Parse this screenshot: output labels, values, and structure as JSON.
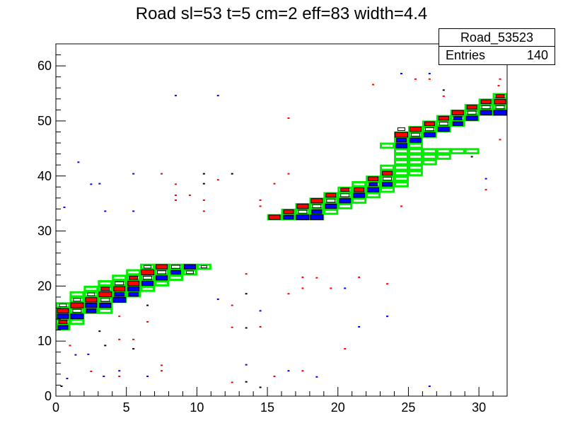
{
  "chart_data": {
    "type": "heatmap",
    "title": "Road sl=53 t=5 cm=2 eff=83 width=4.4",
    "xlabel": "",
    "ylabel": "",
    "xlim": [
      0,
      32
    ],
    "ylim": [
      0,
      64
    ],
    "x_ticks": [
      0,
      5,
      10,
      15,
      20,
      25,
      30
    ],
    "y_ticks": [
      0,
      10,
      20,
      30,
      40,
      50,
      60
    ],
    "grid": false,
    "stats_box": {
      "name": "Road_53523",
      "entries_label": "Entries",
      "entries_value": "140"
    },
    "colors": {
      "hit_a": "#ff0000",
      "hit_b": "#0000ff",
      "hit_c": "#000000",
      "road": "#00ee00",
      "axis": "#000000"
    },
    "road_cells": [
      [
        0,
        12
      ],
      [
        0,
        13
      ],
      [
        0,
        14
      ],
      [
        0,
        15
      ],
      [
        0,
        16
      ],
      [
        1,
        13
      ],
      [
        1,
        14
      ],
      [
        1,
        15
      ],
      [
        1,
        16
      ],
      [
        1,
        17
      ],
      [
        1,
        18
      ],
      [
        2,
        15
      ],
      [
        2,
        16
      ],
      [
        2,
        17
      ],
      [
        2,
        18
      ],
      [
        2,
        19
      ],
      [
        3,
        15
      ],
      [
        3,
        16
      ],
      [
        3,
        17
      ],
      [
        3,
        18
      ],
      [
        3,
        19
      ],
      [
        3,
        20
      ],
      [
        4,
        17
      ],
      [
        4,
        18
      ],
      [
        4,
        19
      ],
      [
        4,
        20
      ],
      [
        4,
        21
      ],
      [
        5,
        18
      ],
      [
        5,
        19
      ],
      [
        5,
        20
      ],
      [
        5,
        21
      ],
      [
        5,
        22
      ],
      [
        6,
        19
      ],
      [
        6,
        20
      ],
      [
        6,
        21
      ],
      [
        6,
        22
      ],
      [
        6,
        23
      ],
      [
        7,
        20
      ],
      [
        7,
        21
      ],
      [
        7,
        22
      ],
      [
        7,
        23
      ],
      [
        8,
        21
      ],
      [
        8,
        22
      ],
      [
        8,
        23
      ],
      [
        9,
        22
      ],
      [
        9,
        23
      ],
      [
        10,
        23
      ],
      [
        15,
        32
      ],
      [
        16,
        32
      ],
      [
        16,
        33
      ],
      [
        17,
        32
      ],
      [
        17,
        33
      ],
      [
        17,
        34
      ],
      [
        18,
        32
      ],
      [
        18,
        33
      ],
      [
        18,
        34
      ],
      [
        18,
        35
      ],
      [
        19,
        33
      ],
      [
        19,
        34
      ],
      [
        19,
        35
      ],
      [
        19,
        36
      ],
      [
        20,
        34
      ],
      [
        20,
        35
      ],
      [
        20,
        36
      ],
      [
        20,
        37
      ],
      [
        21,
        35
      ],
      [
        21,
        36
      ],
      [
        21,
        37
      ],
      [
        21,
        38
      ],
      [
        22,
        36
      ],
      [
        22,
        37
      ],
      [
        22,
        38
      ],
      [
        22,
        39
      ],
      [
        23,
        37
      ],
      [
        23,
        38
      ],
      [
        23,
        39
      ],
      [
        23,
        40
      ],
      [
        23,
        41
      ],
      [
        23,
        45
      ],
      [
        24,
        38
      ],
      [
        24,
        39
      ],
      [
        24,
        40
      ],
      [
        24,
        41
      ],
      [
        24,
        42
      ],
      [
        24,
        43
      ],
      [
        24,
        44
      ],
      [
        24,
        45
      ],
      [
        24,
        46
      ],
      [
        24,
        47
      ],
      [
        25,
        40
      ],
      [
        25,
        41
      ],
      [
        25,
        42
      ],
      [
        25,
        43
      ],
      [
        25,
        44
      ],
      [
        25,
        45
      ],
      [
        25,
        46
      ],
      [
        25,
        47
      ],
      [
        25,
        48
      ],
      [
        26,
        42
      ],
      [
        26,
        43
      ],
      [
        26,
        44
      ],
      [
        26,
        47
      ],
      [
        26,
        48
      ],
      [
        26,
        49
      ],
      [
        27,
        43
      ],
      [
        27,
        44
      ],
      [
        27,
        48
      ],
      [
        27,
        49
      ],
      [
        27,
        50
      ],
      [
        28,
        44
      ],
      [
        28,
        49
      ],
      [
        28,
        50
      ],
      [
        28,
        51
      ],
      [
        29,
        44
      ],
      [
        29,
        50
      ],
      [
        29,
        51
      ],
      [
        29,
        52
      ],
      [
        30,
        51
      ],
      [
        30,
        52
      ],
      [
        30,
        53
      ],
      [
        31,
        51
      ],
      [
        31,
        52
      ],
      [
        31,
        53
      ],
      [
        31,
        54
      ]
    ],
    "track_hits": [
      [
        0,
        12,
        "b",
        0.7
      ],
      [
        0,
        13,
        "r",
        0.6
      ],
      [
        0,
        14,
        "b",
        0.8
      ],
      [
        0,
        15,
        "r",
        0.8
      ],
      [
        0,
        16,
        "k",
        0.5
      ],
      [
        1,
        14,
        "b",
        0.9
      ],
      [
        1,
        15,
        "k",
        0.6
      ],
      [
        1,
        16,
        "r",
        0.9
      ],
      [
        1,
        17,
        "k",
        0.5
      ],
      [
        2,
        15,
        "b",
        0.7
      ],
      [
        2,
        16,
        "b",
        0.8
      ],
      [
        2,
        17,
        "r",
        0.8
      ],
      [
        2,
        18,
        "k",
        0.5
      ],
      [
        3,
        16,
        "b",
        0.8
      ],
      [
        3,
        17,
        "k",
        0.6
      ],
      [
        3,
        18,
        "r",
        0.9
      ],
      [
        3,
        19,
        "r",
        0.6
      ],
      [
        4,
        17,
        "b",
        0.9
      ],
      [
        4,
        18,
        "b",
        0.7
      ],
      [
        4,
        19,
        "r",
        0.8
      ],
      [
        4,
        20,
        "k",
        0.6
      ],
      [
        5,
        18,
        "b",
        0.7
      ],
      [
        5,
        19,
        "b",
        0.8
      ],
      [
        5,
        20,
        "r",
        0.8
      ],
      [
        5,
        21,
        "r",
        0.6
      ],
      [
        6,
        20,
        "b",
        0.8
      ],
      [
        6,
        21,
        "k",
        0.6
      ],
      [
        6,
        22,
        "r",
        0.9
      ],
      [
        6,
        23,
        "k",
        0.5
      ],
      [
        7,
        21,
        "b",
        0.8
      ],
      [
        7,
        22,
        "k",
        0.6
      ],
      [
        7,
        23,
        "r",
        0.8
      ],
      [
        8,
        22,
        "b",
        0.7
      ],
      [
        8,
        23,
        "k",
        0.6
      ],
      [
        9,
        22,
        "k",
        0.5
      ],
      [
        9,
        23,
        "b",
        0.8
      ],
      [
        10,
        23,
        "k",
        0.4
      ],
      [
        15,
        32,
        "r",
        0.8
      ],
      [
        16,
        32,
        "b",
        0.7
      ],
      [
        16,
        33,
        "r",
        0.7
      ],
      [
        17,
        32,
        "b",
        0.9
      ],
      [
        17,
        33,
        "k",
        0.6
      ],
      [
        17,
        34,
        "r",
        0.8
      ],
      [
        18,
        32,
        "b",
        0.9
      ],
      [
        18,
        33,
        "b",
        0.7
      ],
      [
        18,
        34,
        "k",
        0.6
      ],
      [
        18,
        35,
        "r",
        0.8
      ],
      [
        19,
        34,
        "b",
        0.8
      ],
      [
        19,
        35,
        "k",
        0.6
      ],
      [
        19,
        36,
        "r",
        0.7
      ],
      [
        20,
        35,
        "b",
        0.8
      ],
      [
        20,
        36,
        "k",
        0.6
      ],
      [
        20,
        37,
        "r",
        0.6
      ],
      [
        21,
        36,
        "b",
        0.8
      ],
      [
        21,
        37,
        "r",
        0.7
      ],
      [
        22,
        37,
        "b",
        0.8
      ],
      [
        22,
        38,
        "b",
        0.6
      ],
      [
        22,
        39,
        "r",
        0.7
      ],
      [
        23,
        38,
        "b",
        0.7
      ],
      [
        23,
        39,
        "k",
        0.6
      ],
      [
        23,
        40,
        "r",
        0.7
      ],
      [
        24,
        45,
        "b",
        0.8
      ],
      [
        24,
        46,
        "b",
        0.7
      ],
      [
        24,
        47,
        "r",
        0.9
      ],
      [
        24,
        48,
        "k",
        0.5
      ],
      [
        25,
        46,
        "b",
        0.8
      ],
      [
        25,
        47,
        "k",
        0.6
      ],
      [
        25,
        48,
        "r",
        0.8
      ],
      [
        26,
        47,
        "b",
        0.8
      ],
      [
        26,
        48,
        "k",
        0.6
      ],
      [
        26,
        49,
        "r",
        0.7
      ],
      [
        27,
        48,
        "b",
        0.8
      ],
      [
        27,
        49,
        "k",
        0.6
      ],
      [
        27,
        50,
        "r",
        0.7
      ],
      [
        28,
        49,
        "b",
        0.7
      ],
      [
        28,
        50,
        "b",
        0.6
      ],
      [
        28,
        51,
        "r",
        0.8
      ],
      [
        29,
        50,
        "b",
        0.8
      ],
      [
        29,
        51,
        "k",
        0.6
      ],
      [
        29,
        52,
        "r",
        0.7
      ],
      [
        30,
        51,
        "b",
        0.8
      ],
      [
        30,
        52,
        "k",
        0.6
      ],
      [
        30,
        53,
        "r",
        0.7
      ],
      [
        31,
        51,
        "b",
        0.9
      ],
      [
        31,
        52,
        "k",
        0.6
      ],
      [
        31,
        53,
        "r",
        0.8
      ],
      [
        31,
        54,
        "r",
        0.6
      ]
    ],
    "noise_hits": [
      [
        0.4,
        1.8,
        "k"
      ],
      [
        0.8,
        3.2,
        "b"
      ],
      [
        1.4,
        7.5,
        "b"
      ],
      [
        1.0,
        9.2,
        "r"
      ],
      [
        0.6,
        34.3,
        "b"
      ],
      [
        2.3,
        7.6,
        "b"
      ],
      [
        3.1,
        11.8,
        "k"
      ],
      [
        2.5,
        4.5,
        "r"
      ],
      [
        3.4,
        3.6,
        "b"
      ],
      [
        3.5,
        9.2,
        "k"
      ],
      [
        2.5,
        38.5,
        "b"
      ],
      [
        3.1,
        38.6,
        "b"
      ],
      [
        1.6,
        42.5,
        "b"
      ],
      [
        3.5,
        33.6,
        "b"
      ],
      [
        4.5,
        3.6,
        "r"
      ],
      [
        4.5,
        4.6,
        "b"
      ],
      [
        4.5,
        10.3,
        "r"
      ],
      [
        4.5,
        14.5,
        "r"
      ],
      [
        5.5,
        33.6,
        "b"
      ],
      [
        5.5,
        10.3,
        "r"
      ],
      [
        5.5,
        8.6,
        "k"
      ],
      [
        5.5,
        40.4,
        "b"
      ],
      [
        6.5,
        3.6,
        "b"
      ],
      [
        6.5,
        16.5,
        "k"
      ],
      [
        7.5,
        4.6,
        "r"
      ],
      [
        7.5,
        5.6,
        "r"
      ],
      [
        6.5,
        13.5,
        "r"
      ],
      [
        7.5,
        40.4,
        "r"
      ],
      [
        8.5,
        38.5,
        "r"
      ],
      [
        8.5,
        36.5,
        "r"
      ],
      [
        8.5,
        35.6,
        "r"
      ],
      [
        8.5,
        54.6,
        "b"
      ],
      [
        9.5,
        36.5,
        "r"
      ],
      [
        10.5,
        33.6,
        "r"
      ],
      [
        10.5,
        35.6,
        "r"
      ],
      [
        10.5,
        38.6,
        "k"
      ],
      [
        10.5,
        40.4,
        "k"
      ],
      [
        11.5,
        39.3,
        "r"
      ],
      [
        11.5,
        17.6,
        "b"
      ],
      [
        11.5,
        54.6,
        "b"
      ],
      [
        12.5,
        2.5,
        "r"
      ],
      [
        12.5,
        12.5,
        "r"
      ],
      [
        12.5,
        16.5,
        "r"
      ],
      [
        12.5,
        40.4,
        "k"
      ],
      [
        13.5,
        2.6,
        "k"
      ],
      [
        13.5,
        5.7,
        "b"
      ],
      [
        13.5,
        18.6,
        "k"
      ],
      [
        13.5,
        22.2,
        "r"
      ],
      [
        13.5,
        12.4,
        "k"
      ],
      [
        14.5,
        1.6,
        "k"
      ],
      [
        14.5,
        12.6,
        "r"
      ],
      [
        14.5,
        15.5,
        "b"
      ],
      [
        14.5,
        35.6,
        "r"
      ],
      [
        14.5,
        34.5,
        "r"
      ],
      [
        15.5,
        3.6,
        "r"
      ],
      [
        15.5,
        38.6,
        "r"
      ],
      [
        16.5,
        4.6,
        "b"
      ],
      [
        16.5,
        18.6,
        "r"
      ],
      [
        16.5,
        40.4,
        "r"
      ],
      [
        16.5,
        50.5,
        "r"
      ],
      [
        17.5,
        4.6,
        "r"
      ],
      [
        17.5,
        19.6,
        "r"
      ],
      [
        17.5,
        21.6,
        "r"
      ],
      [
        18.5,
        3.5,
        "b"
      ],
      [
        18.5,
        21.5,
        "r"
      ],
      [
        19.5,
        19.6,
        "r"
      ],
      [
        20.5,
        8.6,
        "r"
      ],
      [
        20.5,
        19.6,
        "b"
      ],
      [
        21.5,
        21.6,
        "r"
      ],
      [
        21.5,
        12.6,
        "b"
      ],
      [
        22.5,
        56.6,
        "r"
      ],
      [
        23.5,
        14.5,
        "b"
      ],
      [
        23.5,
        20.4,
        "r"
      ],
      [
        24.5,
        58.6,
        "b"
      ],
      [
        24.5,
        34.5,
        "r"
      ],
      [
        25.5,
        57.6,
        "r"
      ],
      [
        26.5,
        57.6,
        "r"
      ],
      [
        26.5,
        1.8,
        "b"
      ],
      [
        26.5,
        58.6,
        "b"
      ],
      [
        27.5,
        54.5,
        "r"
      ],
      [
        27.5,
        55.6,
        "k"
      ],
      [
        30.5,
        39.5,
        "b"
      ],
      [
        30.5,
        37.5,
        "r"
      ],
      [
        31.5,
        46.6,
        "r"
      ],
      [
        31.5,
        57.6,
        "r"
      ],
      [
        31.4,
        56.4,
        "r"
      ],
      [
        29.5,
        43.5,
        "k"
      ]
    ]
  }
}
